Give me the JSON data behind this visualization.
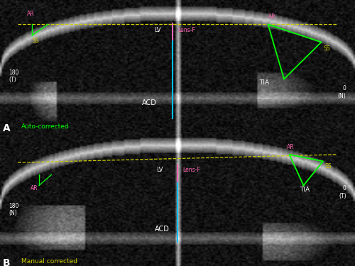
{
  "fig_width": 5.0,
  "fig_height": 3.75,
  "dpi": 100,
  "background_color": "#000000",
  "panel_A": {
    "label": "A",
    "title": "Auto-corrected",
    "title_color": "#00ff00",
    "left_label": "180\n(T)",
    "right_label": "0\n(N)",
    "acd_label": "ACD",
    "lv_label": "LV",
    "tia_label": "TIA",
    "lens_f_label": "Lens-F",
    "ss_label_left": "SS",
    "ss_label_right": "SS",
    "ar_label_left": "AR",
    "ar_label_right": "AR",
    "acd_color": "#00bfff",
    "lv_color": "#ff69b4",
    "tia_color": "#00ff00",
    "dashed_color": "#cccc00",
    "ss_color": "#cccc00",
    "ar_color": "#ff69b4",
    "text_color": "#ffffff"
  },
  "panel_B": {
    "label": "B",
    "title": "Manual corrected",
    "title_color": "#cccc00",
    "left_label": "180\n(N)",
    "right_label": "0\n(T)",
    "acd_label": "ACD",
    "lv_label": "LV",
    "tia_label": "TIA",
    "lens_f_label": "Lens-F",
    "ss_label": "SS",
    "ar_label_left": "AR",
    "ar_label_right": "AR",
    "acd_color": "#00bfff",
    "lv_color": "#ff69b4",
    "tia_color": "#00ff00",
    "dashed_color": "#cccc00",
    "ss_color": "#cccc00",
    "ar_color": "#ff69b4",
    "text_color": "#ffffff"
  }
}
